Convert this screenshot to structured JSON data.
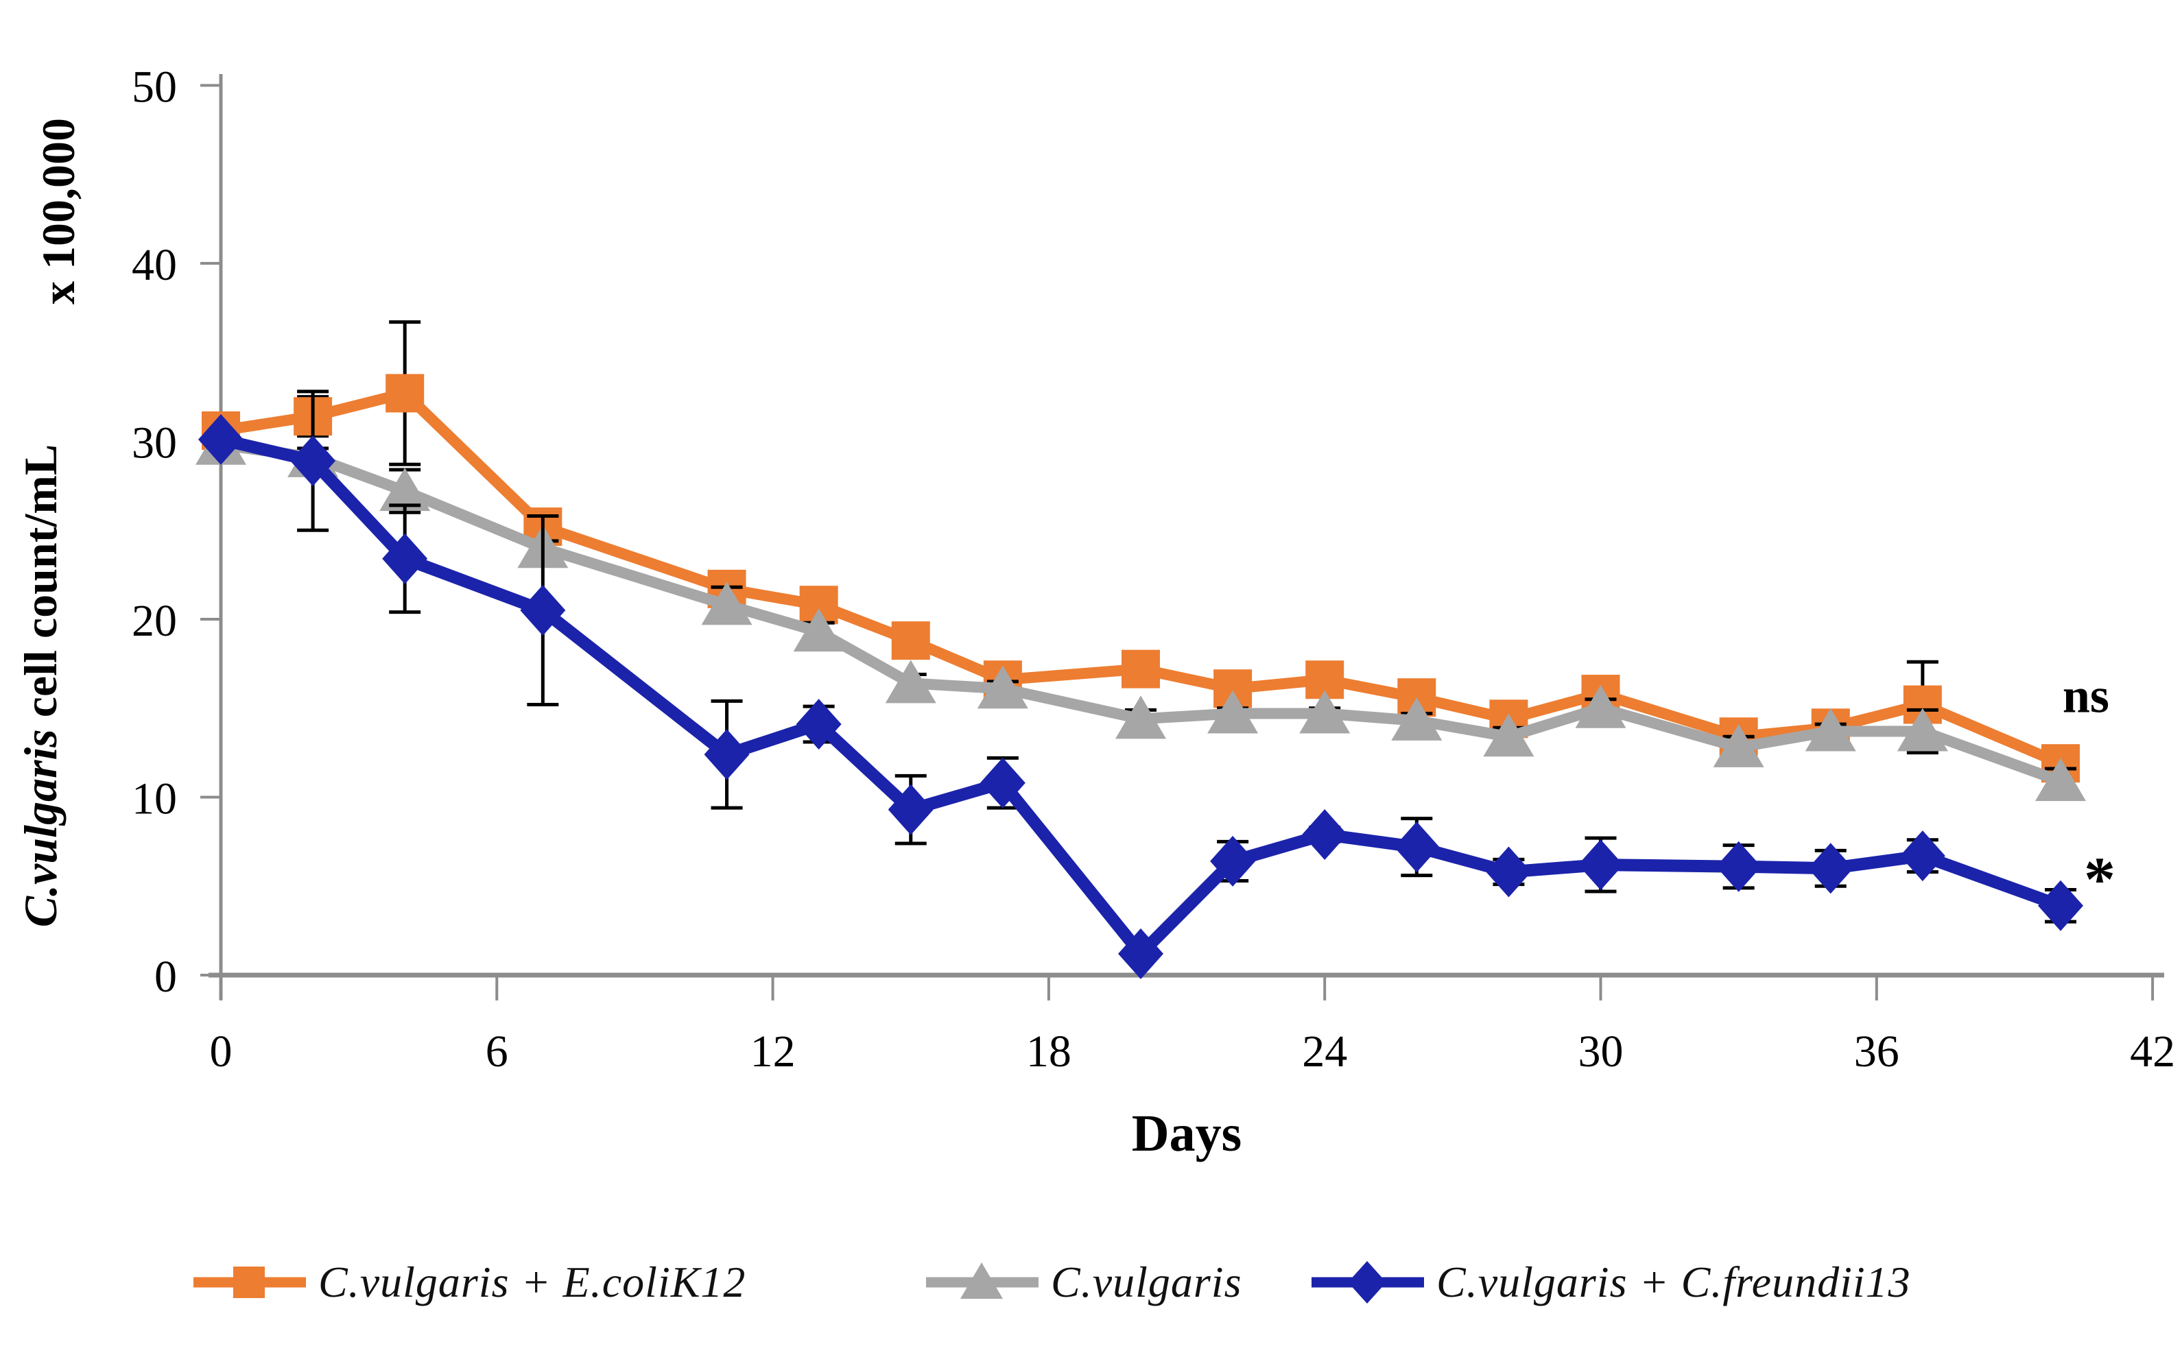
{
  "figure_title": "",
  "chart_data": {
    "type": "line",
    "x_title": "Days",
    "y_title_italic": "C.vulgaris",
    "y_title_rest": " cell count/mL",
    "y_title_line2": "x 100,000",
    "x": [
      0,
      2,
      4,
      7,
      11,
      13,
      15,
      17,
      20,
      22,
      24,
      26,
      28,
      30,
      33,
      35,
      37,
      40
    ],
    "xlim": [
      0,
      42
    ],
    "ylim": [
      0,
      50
    ],
    "x_ticks": [
      0,
      6,
      12,
      18,
      24,
      30,
      36,
      42
    ],
    "y_ticks": [
      0,
      10,
      20,
      30,
      40,
      50
    ],
    "grid": false,
    "legend_position": "bottom",
    "error_bars": true,
    "axis_color": "#8c8c8c",
    "error_bar_color": "#000000",
    "series": [
      {
        "name": "C.vulgaris + E.coliK12",
        "marker": "square",
        "color": "#ED7D31",
        "line_width": 16,
        "values": [
          30.6,
          31.4,
          32.7,
          25.2,
          21.7,
          20.8,
          18.8,
          16.6,
          17.2,
          16.1,
          16.6,
          15.6,
          14.4,
          15.8,
          13.4,
          13.9,
          15.2,
          11.9
        ],
        "errors": [
          0,
          1.1,
          4.0,
          0.6,
          0.7,
          0.8,
          0.5,
          0.4,
          0.5,
          0.4,
          0.6,
          0.4,
          0.5,
          0.9,
          0.5,
          0.6,
          2.4,
          0.9
        ]
      },
      {
        "name": "C.vulgaris",
        "marker": "triangle",
        "color": "#A6A6A6",
        "line_width": 16,
        "values": [
          29.8,
          29.1,
          27.2,
          24.0,
          20.8,
          19.3,
          16.4,
          16.1,
          14.4,
          14.7,
          14.7,
          14.3,
          13.4,
          15.0,
          12.8,
          13.7,
          13.7,
          10.9
        ],
        "errors": [
          0,
          0.5,
          1.2,
          0.4,
          1.0,
          0.5,
          0.5,
          0.4,
          0.5,
          0.3,
          0.3,
          0.4,
          0.5,
          0.5,
          0.6,
          0.4,
          1.2,
          0.7
        ]
      },
      {
        "name": "C.vulgaris + C.freundii13",
        "marker": "diamond",
        "color": "#1B23AB",
        "line_width": 18,
        "values": [
          30.1,
          28.9,
          23.4,
          20.5,
          12.4,
          14.1,
          9.3,
          10.8,
          1.2,
          6.4,
          7.9,
          7.2,
          5.8,
          6.2,
          6.1,
          6.0,
          6.7,
          3.9
        ],
        "errors": [
          0,
          3.9,
          3.0,
          5.3,
          3.0,
          1.0,
          1.9,
          1.4,
          0.3,
          1.1,
          0.4,
          1.6,
          0.7,
          1.5,
          1.2,
          1.0,
          0.9,
          0.9
        ]
      }
    ],
    "annotations": [
      {
        "text": "ns",
        "day": 40.55,
        "value": 15.7,
        "size": 72,
        "color": "#10173d"
      },
      {
        "text": "*",
        "day": 40.85,
        "value": 5.4,
        "size": 92,
        "color": "#111111"
      }
    ]
  }
}
